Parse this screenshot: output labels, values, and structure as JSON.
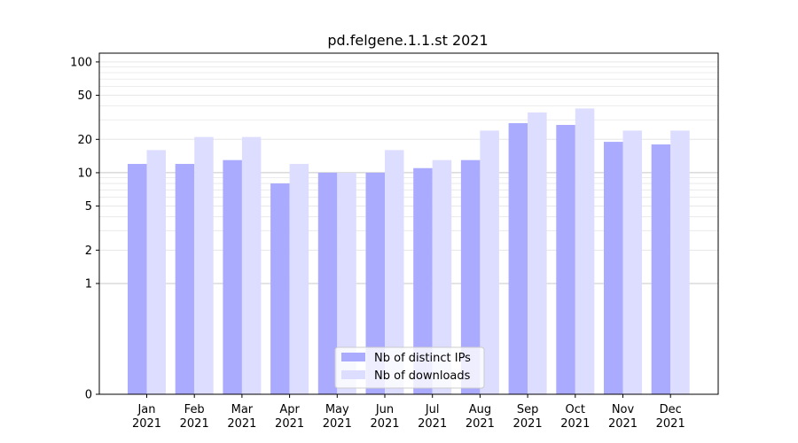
{
  "chart_data": {
    "type": "bar",
    "title": "pd.felgene.1.1.st 2021",
    "xlabel": "",
    "ylabel": "",
    "y_scale": "symlog",
    "ylim": [
      0,
      120
    ],
    "y_ticks": [
      0,
      1,
      2,
      5,
      10,
      20,
      50,
      100
    ],
    "categories": [
      "Jan\n2021",
      "Feb\n2021",
      "Mar\n2021",
      "Apr\n2021",
      "May\n2021",
      "Jun\n2021",
      "Jul\n2021",
      "Aug\n2021",
      "Sep\n2021",
      "Oct\n2021",
      "Nov\n2021",
      "Dec\n2021"
    ],
    "series": [
      {
        "name": "Nb of distinct IPs",
        "color": "#aaaaff",
        "values": [
          12,
          12,
          13,
          8,
          10,
          10,
          11,
          13,
          28,
          27,
          19,
          18
        ]
      },
      {
        "name": "Nb of downloads",
        "color": "#ddddff",
        "values": [
          16,
          21,
          21,
          12,
          10,
          16,
          13,
          24,
          35,
          38,
          24,
          24
        ]
      }
    ],
    "grid": true,
    "legend_position": "bottom-center"
  }
}
